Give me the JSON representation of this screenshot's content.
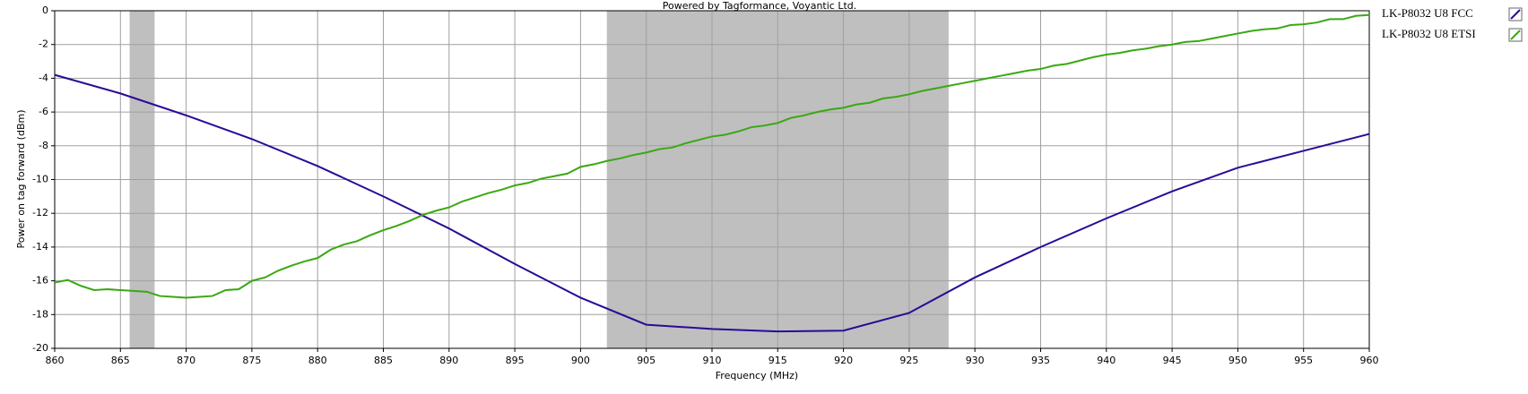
{
  "chart_data": {
    "type": "line",
    "title": "Powered by Tagformance, Voyantic Ltd.",
    "x_label": "Frequency (MHz)",
    "y_label": "Power on tag forward (dBm)",
    "xlim": [
      860,
      960
    ],
    "ylim": [
      -20,
      0
    ],
    "xticks": [
      860,
      865,
      870,
      875,
      880,
      885,
      890,
      895,
      900,
      905,
      910,
      915,
      920,
      925,
      930,
      935,
      940,
      945,
      950,
      955,
      960
    ],
    "yticks": [
      -20,
      -18,
      -16,
      -14,
      -12,
      -10,
      -8,
      -6,
      -4,
      -2,
      0
    ],
    "grid": true,
    "legend": "right",
    "bands": [
      [
        865.7,
        867.6
      ],
      [
        902,
        928
      ]
    ],
    "band_color": "#bfbfbf",
    "series": [
      {
        "name": "LK-P8032 U8 FCC",
        "color": "#2a0a96",
        "x": [
          860,
          865,
          870,
          875,
          880,
          885,
          890,
          895,
          900,
          905,
          910,
          915,
          920,
          925,
          930,
          935,
          940,
          945,
          950,
          955,
          960
        ],
        "values": [
          -3.8,
          -4.9,
          -6.2,
          -7.6,
          -9.2,
          -11.0,
          -12.9,
          -15.0,
          -17.0,
          -18.6,
          -18.85,
          -19.0,
          -18.95,
          -17.9,
          -15.8,
          -14.0,
          -12.3,
          -10.7,
          -9.3,
          -8.3,
          -7.3
        ]
      },
      {
        "name": "LK-P8032 U8 ETSI",
        "color": "#3aa812",
        "x": [
          860,
          861,
          862,
          863,
          864,
          865,
          866,
          867,
          868,
          869,
          870,
          871,
          872,
          873,
          874,
          875,
          876,
          877,
          878,
          879,
          880,
          881,
          882,
          883,
          884,
          885,
          886,
          887,
          888,
          889,
          890,
          891,
          892,
          893,
          894,
          895,
          896,
          897,
          898,
          899,
          900,
          901,
          902,
          903,
          904,
          905,
          906,
          907,
          908,
          909,
          910,
          911,
          912,
          913,
          914,
          915,
          916,
          917,
          918,
          919,
          920,
          921,
          922,
          923,
          924,
          925,
          926,
          927,
          928,
          929,
          930,
          931,
          932,
          933,
          934,
          935,
          936,
          937,
          938,
          939,
          940,
          941,
          942,
          943,
          944,
          945,
          946,
          947,
          948,
          949,
          950,
          951,
          952,
          953,
          954,
          955,
          956,
          957,
          958,
          959,
          960
        ],
        "values": [
          -16.1,
          -15.95,
          -16.3,
          -16.55,
          -16.5,
          -16.55,
          -16.6,
          -16.65,
          -16.9,
          -16.95,
          -17.0,
          -16.95,
          -16.9,
          -16.55,
          -16.5,
          -16.0,
          -15.8,
          -15.4,
          -15.1,
          -14.85,
          -14.65,
          -14.15,
          -13.85,
          -13.65,
          -13.3,
          -13.0,
          -12.75,
          -12.45,
          -12.1,
          -11.85,
          -11.65,
          -11.3,
          -11.05,
          -10.8,
          -10.6,
          -10.35,
          -10.2,
          -9.95,
          -9.8,
          -9.65,
          -9.25,
          -9.1,
          -8.9,
          -8.75,
          -8.55,
          -8.4,
          -8.2,
          -8.1,
          -7.85,
          -7.65,
          -7.45,
          -7.35,
          -7.15,
          -6.9,
          -6.8,
          -6.65,
          -6.35,
          -6.2,
          -6.0,
          -5.85,
          -5.75,
          -5.55,
          -5.45,
          -5.2,
          -5.1,
          -4.95,
          -4.75,
          -4.6,
          -4.45,
          -4.3,
          -4.15,
          -4.0,
          -3.85,
          -3.7,
          -3.55,
          -3.45,
          -3.25,
          -3.15,
          -2.95,
          -2.75,
          -2.6,
          -2.5,
          -2.35,
          -2.25,
          -2.1,
          -2.0,
          -1.85,
          -1.8,
          -1.65,
          -1.5,
          -1.35,
          -1.2,
          -1.1,
          -1.05,
          -0.85,
          -0.8,
          -0.7,
          -0.5,
          -0.5,
          -0.3,
          -0.25
        ]
      }
    ]
  }
}
